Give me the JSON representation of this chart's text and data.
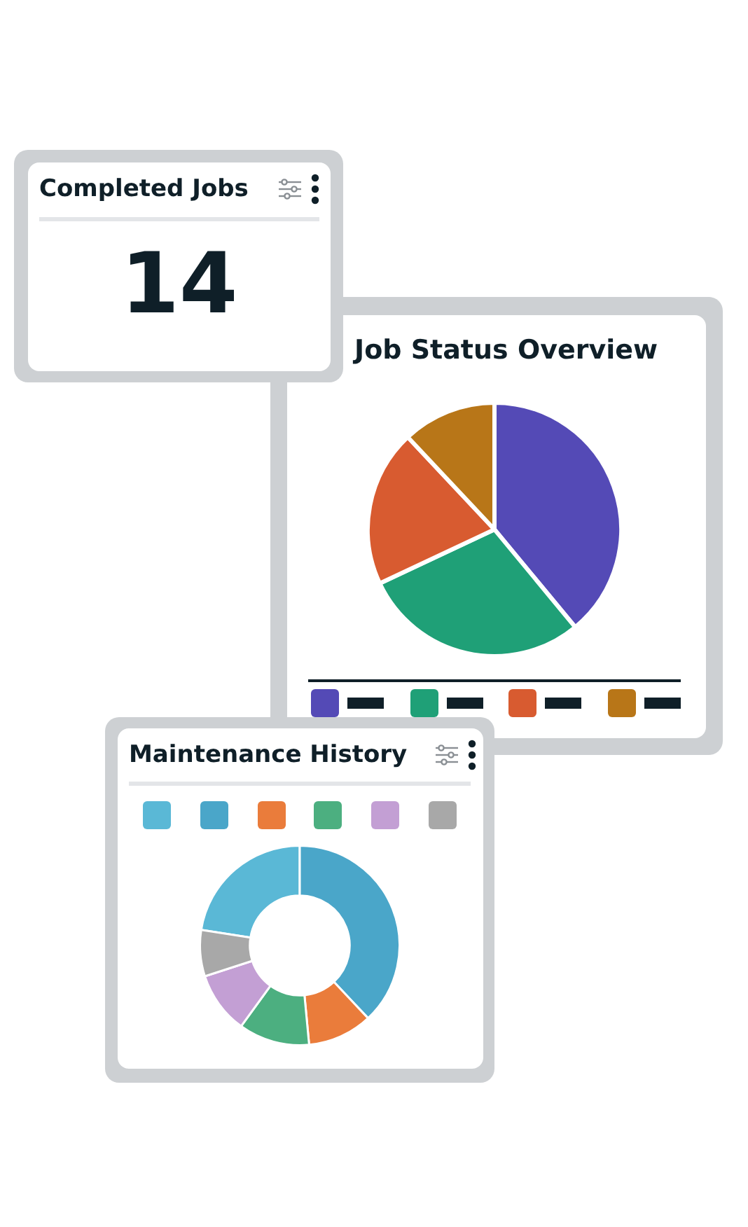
{
  "chart_data": [
    {
      "type": "other",
      "title": "Completed Jobs",
      "annotations": [
        "14"
      ]
    },
    {
      "type": "pie",
      "title": "Job Status Overview",
      "categories": [
        null,
        null,
        null,
        null
      ],
      "values": [
        39,
        29,
        20,
        12
      ],
      "colors": [
        "#544ab6",
        "#1fa077",
        "#d85b30",
        "#b87618"
      ]
    },
    {
      "type": "donut",
      "title": "Maintenance History",
      "categories": [
        null,
        null,
        null,
        null,
        null,
        null
      ],
      "values": [
        22.5,
        38,
        10.5,
        11.5,
        10,
        7.5
      ],
      "colors": [
        "#5ab8d6",
        "#4aa6c9",
        "#ea7c3b",
        "#4caf80",
        "#c39fd4",
        "#a8a8a8"
      ]
    }
  ]
}
